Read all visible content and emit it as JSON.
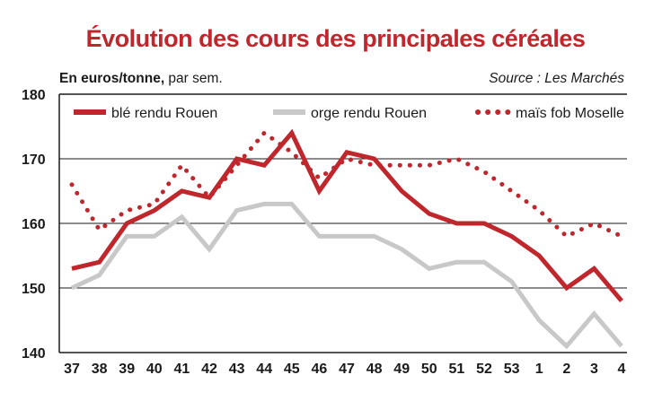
{
  "chart_data": {
    "type": "line",
    "title": "Évolution des cours des principales céréales",
    "ylabel_bold": "En euros/tonne,",
    "ylabel_rest": " par sem.",
    "source": "Source : Les Marchés",
    "categories": [
      "37",
      "38",
      "39",
      "40",
      "41",
      "42",
      "43",
      "44",
      "45",
      "46",
      "47",
      "48",
      "49",
      "50",
      "51",
      "52",
      "53",
      "1",
      "2",
      "3",
      "4"
    ],
    "ylim": [
      140,
      180
    ],
    "yticks": [
      140,
      150,
      160,
      170,
      180
    ],
    "grid": true,
    "legend_position": "top",
    "series": [
      {
        "name": "blé rendu Rouen",
        "style": "solid",
        "color": "#c0272d",
        "values": [
          153,
          154,
          160,
          162,
          165,
          164,
          170,
          169,
          174,
          165,
          171,
          170,
          165,
          161.5,
          160,
          160,
          158,
          155,
          150,
          153,
          148
        ]
      },
      {
        "name": "orge rendu Rouen",
        "style": "solid",
        "color": "#c8c8c8",
        "values": [
          150,
          152,
          158,
          158,
          161,
          156,
          162,
          163,
          163,
          158,
          158,
          158,
          156,
          153,
          154,
          154,
          151,
          145,
          141,
          146,
          141
        ]
      },
      {
        "name": "maïs fob Moselle",
        "style": "dotted",
        "color": "#c0272d",
        "values": [
          166,
          159,
          162,
          163,
          169,
          164,
          169,
          174,
          171,
          167,
          170,
          169,
          169,
          169,
          170,
          168,
          165,
          162,
          158,
          160,
          158
        ]
      }
    ]
  }
}
